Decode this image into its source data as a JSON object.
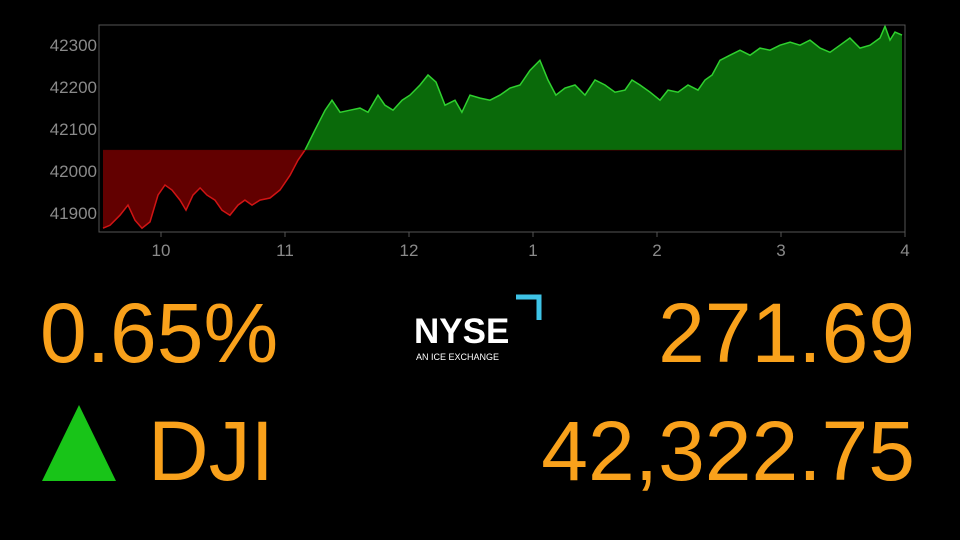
{
  "chart_data": {
    "type": "area",
    "x": [
      9.532,
      9.589,
      9.669,
      9.734,
      9.79,
      9.847,
      9.911,
      9.976,
      10.032,
      10.089,
      10.153,
      10.202,
      10.258,
      10.315,
      10.371,
      10.435,
      10.492,
      10.556,
      10.621,
      10.677,
      10.734,
      10.798,
      10.879,
      10.96,
      11.04,
      11.105,
      11.161,
      11.242,
      11.323,
      11.379,
      11.444,
      11.524,
      11.605,
      11.669,
      11.75,
      11.806,
      11.871,
      11.944,
      12.008,
      12.089,
      12.153,
      12.218,
      12.29,
      12.371,
      12.427,
      12.492,
      12.573,
      12.653,
      12.734,
      12.815,
      12.895,
      12.976,
      13.056,
      13.121,
      13.185,
      13.258,
      13.339,
      13.419,
      13.5,
      13.581,
      13.661,
      13.742,
      13.798,
      13.863,
      13.944,
      14.024,
      14.089,
      14.169,
      14.25,
      14.331,
      14.387,
      14.444,
      14.508,
      14.589,
      14.669,
      14.75,
      14.831,
      14.911,
      14.992,
      15.073,
      15.153,
      15.234,
      15.315,
      15.395,
      15.476,
      15.556,
      15.637,
      15.718,
      15.798,
      15.839,
      15.879,
      15.919,
      15.976
    ],
    "values": [
      41864,
      41871,
      41895,
      41919,
      41883,
      41864,
      41879,
      41943,
      41967,
      41955,
      41931,
      41907,
      41943,
      41960,
      41943,
      41931,
      41907,
      41895,
      41919,
      41931,
      41919,
      41931,
      41936,
      41955,
      41990,
      42026,
      42050,
      42098,
      42145,
      42169,
      42140,
      42145,
      42150,
      42140,
      42181,
      42157,
      42145,
      42169,
      42181,
      42205,
      42229,
      42212,
      42157,
      42169,
      42140,
      42181,
      42174,
      42169,
      42181,
      42198,
      42205,
      42240,
      42264,
      42217,
      42181,
      42198,
      42205,
      42181,
      42217,
      42205,
      42188,
      42193,
      42217,
      42205,
      42188,
      42169,
      42193,
      42188,
      42205,
      42193,
      42217,
      42229,
      42264,
      42276,
      42288,
      42276,
      42293,
      42288,
      42300,
      42307,
      42300,
      42312,
      42293,
      42283,
      42300,
      42317,
      42293,
      42300,
      42317,
      42345,
      42312,
      42331,
      42324
    ],
    "baseline": 42050,
    "up_color": "#2fd12f",
    "up_fill": "#0a6a0a",
    "down_color": "#d01414",
    "down_fill": "#620000",
    "xlim": [
      9.5,
      16
    ],
    "xticks": [
      10,
      11,
      12,
      {
        "value": 13,
        "label": "1"
      },
      {
        "value": 14,
        "label": "2"
      },
      {
        "value": 15,
        "label": "3"
      },
      {
        "value": 16,
        "label": "4"
      }
    ],
    "ylim": [
      41855,
      42348
    ],
    "yticks": [
      41900,
      42000,
      42100,
      42200,
      42300
    ]
  },
  "ticker": {
    "percent": "0.65%",
    "symbol": "DJI",
    "change": "271.69",
    "price": "42,322.75",
    "exchange": "NYSE",
    "exchange_tagline": "AN ICE EXCHANGE"
  }
}
